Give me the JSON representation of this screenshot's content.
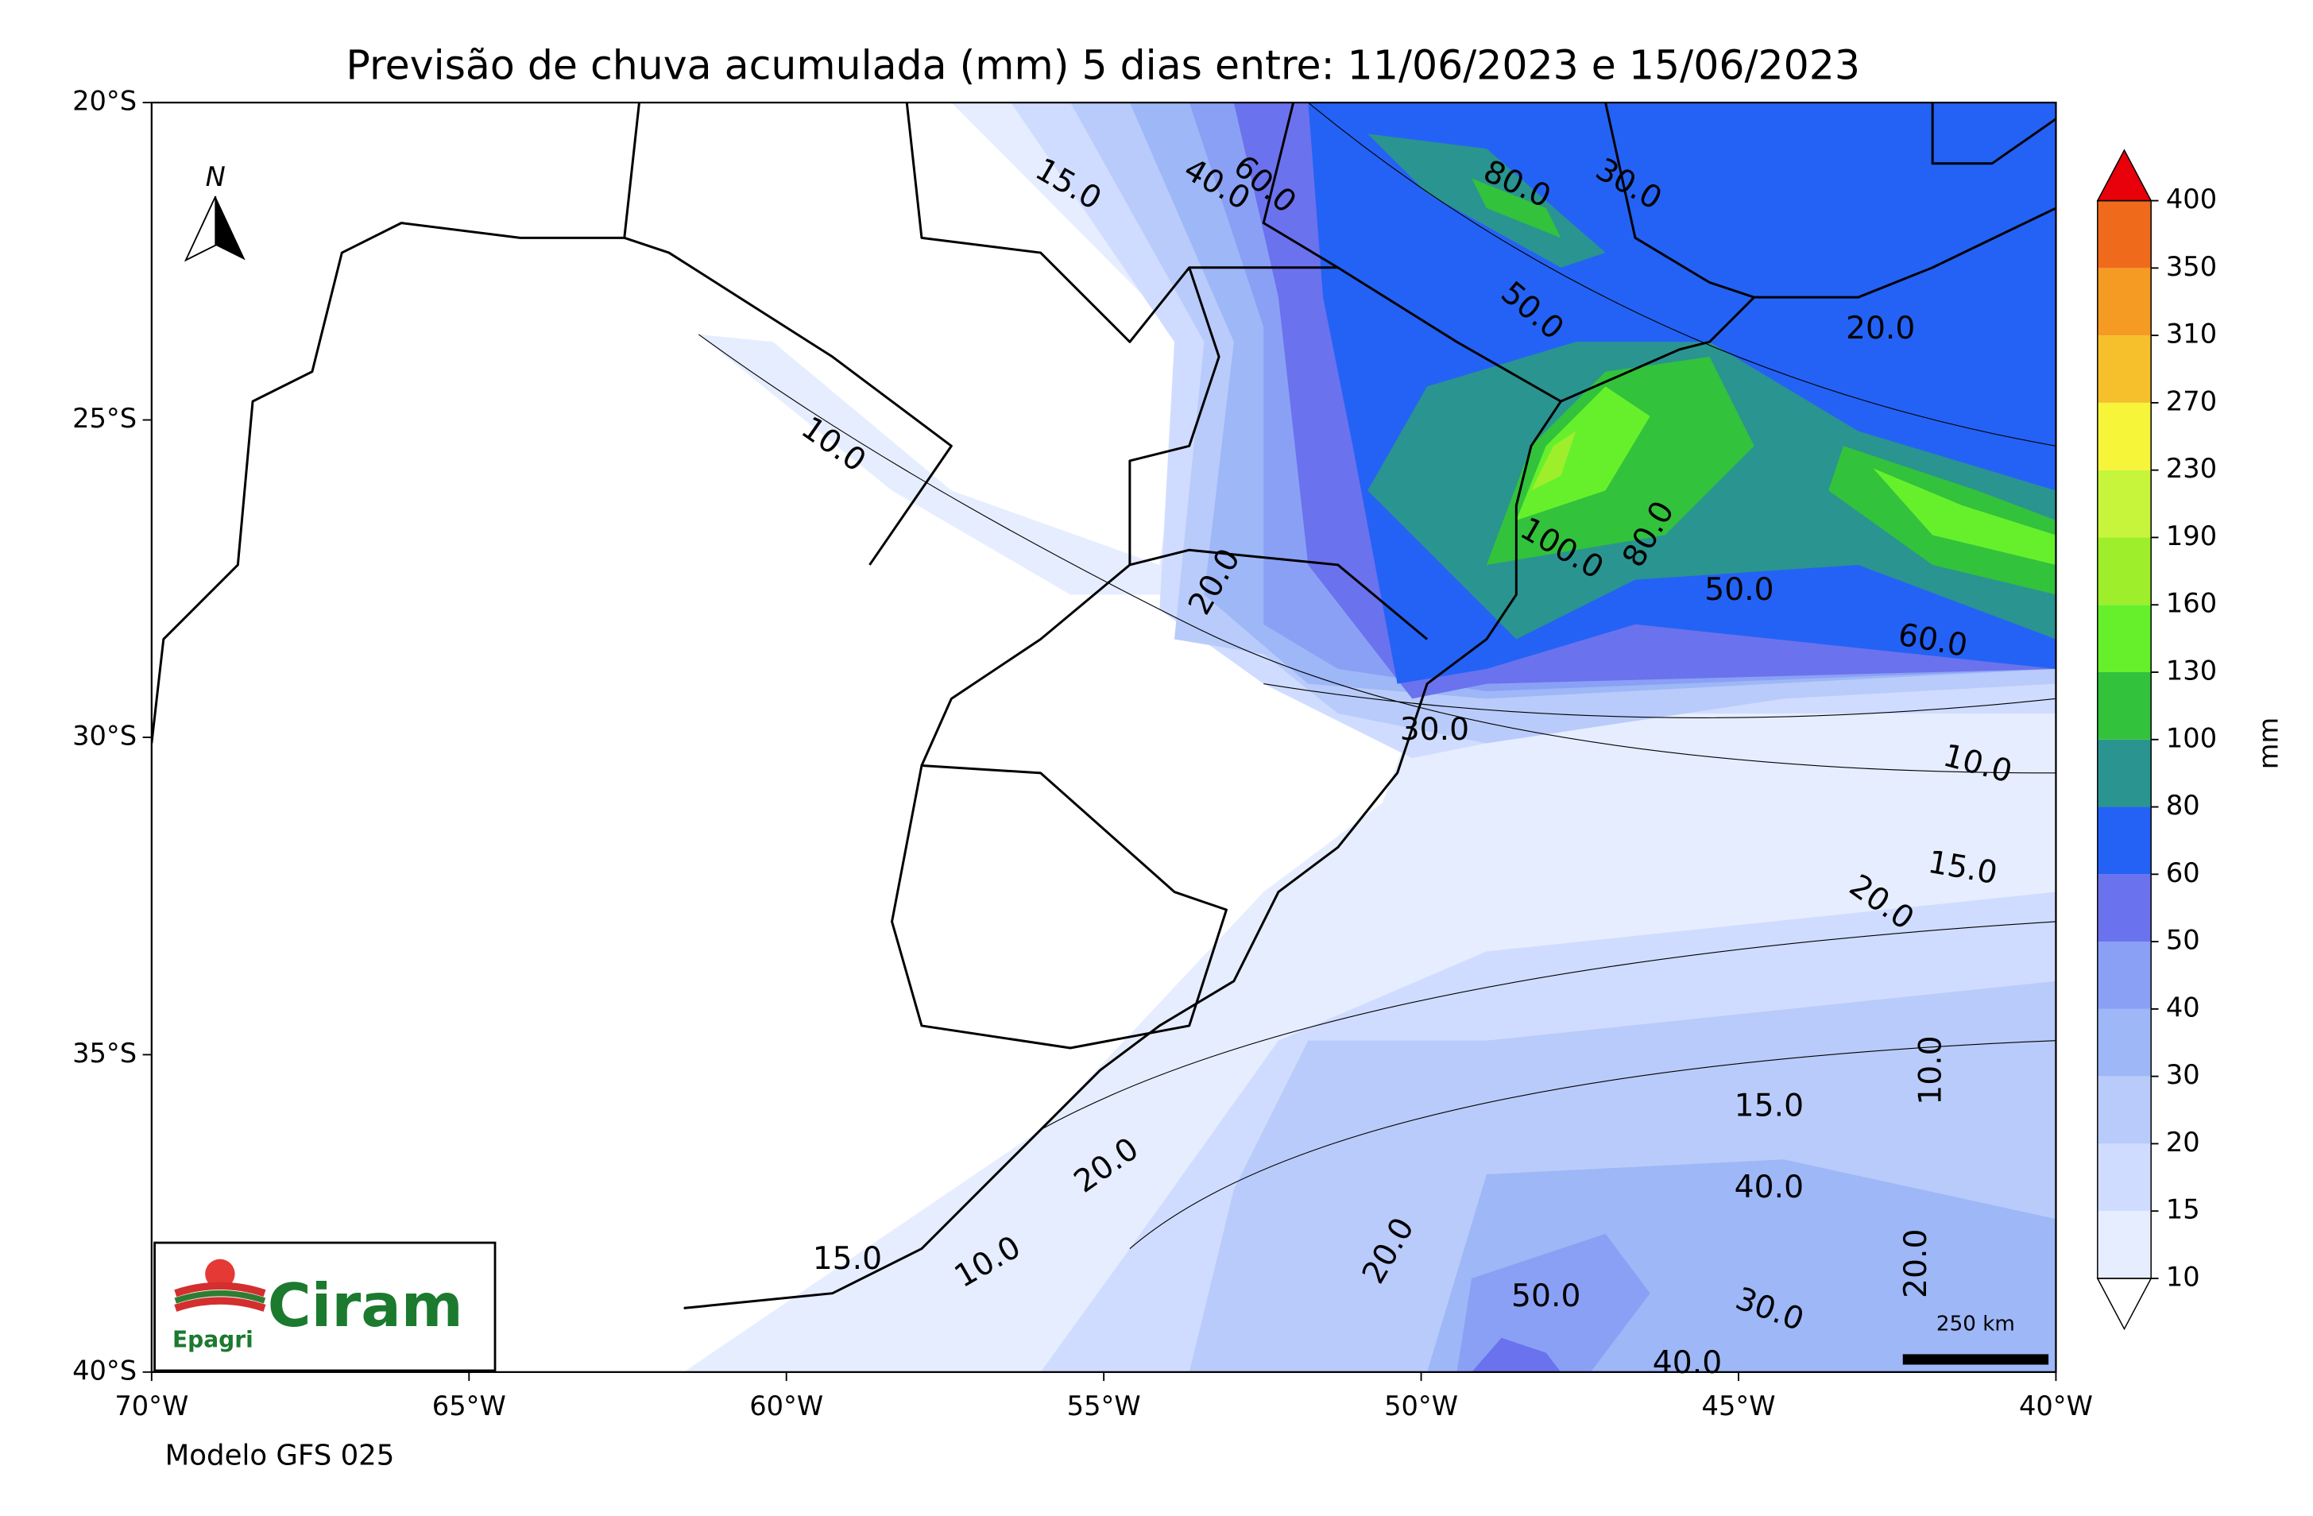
{
  "map": {
    "title": "Previsão de chuva acumulada (mm) 5 dias  entre: 11/06/2023 e 15/06/2023",
    "xlim": [
      -70,
      -40
    ],
    "ylim": [
      -40,
      -20
    ],
    "xticks": [
      {
        "value": -70,
        "label": "70°W"
      },
      {
        "value": -65,
        "label": "65°W"
      },
      {
        "value": -60,
        "label": "60°W"
      },
      {
        "value": -55,
        "label": "55°W"
      },
      {
        "value": -50,
        "label": "50°W"
      },
      {
        "value": -45,
        "label": "45°W"
      },
      {
        "value": -40,
        "label": "40°W"
      }
    ],
    "yticks": [
      {
        "value": -20,
        "label": "20°S"
      },
      {
        "value": -25,
        "label": "25°S"
      },
      {
        "value": -30,
        "label": "30°S"
      },
      {
        "value": -35,
        "label": "35°S"
      },
      {
        "value": -40,
        "label": "40°S"
      }
    ],
    "colorbar": {
      "label": "mm",
      "levels": [
        10,
        15,
        20,
        30,
        40,
        50,
        60,
        80,
        100,
        130,
        160,
        190,
        230,
        270,
        310,
        350,
        400
      ],
      "colors": [
        "#e6edff",
        "#d0dcff",
        "#b9cbfa",
        "#9db7f7",
        "#8aa0f5",
        "#6b72ed",
        "#2462f5",
        "#2a9490",
        "#32c23c",
        "#66f02c",
        "#9eee2c",
        "#c6f53c",
        "#f6f53a",
        "#f5c02c",
        "#f59a22",
        "#f06a1c"
      ],
      "over_color": "#e8000b",
      "under_color": "#ffffff"
    },
    "contour_labels": [
      "15.0",
      "40.0",
      "60.0",
      "80.0",
      "30.0",
      "10.0",
      "50.0",
      "20.0",
      "100.0",
      "80.0",
      "50.0",
      "60.0",
      "20.0",
      "30.0",
      "10.0",
      "15.0",
      "20.0",
      "10.0",
      "15.0",
      "40.0",
      "20.0",
      "50.0",
      "30.0",
      "40.0",
      "20.0",
      "20.0",
      "10.0",
      "15.0"
    ],
    "north": "N",
    "scale_bar": "250 km",
    "logo": {
      "name": "Ciram",
      "org": "Epagri"
    },
    "model": "Modelo GFS 025"
  }
}
